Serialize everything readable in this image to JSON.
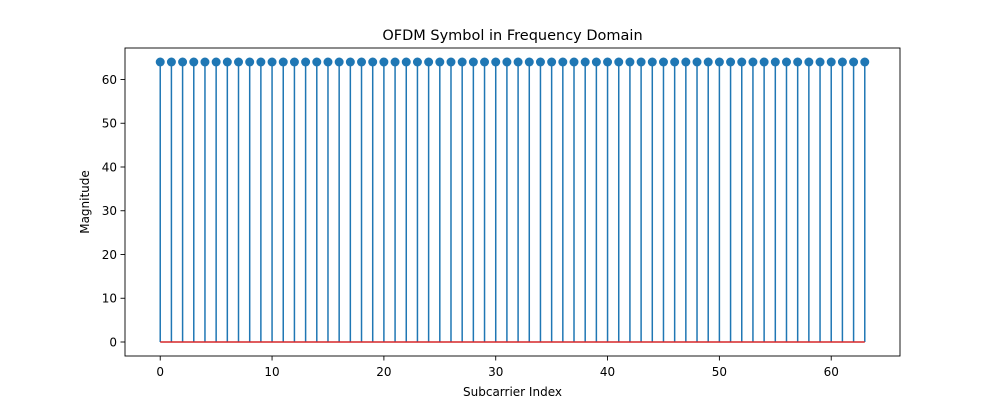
{
  "chart_data": {
    "type": "stem",
    "title": "OFDM Symbol in Frequency Domain",
    "xlabel": "Subcarrier Index",
    "ylabel": "Magnitude",
    "x": [
      0,
      1,
      2,
      3,
      4,
      5,
      6,
      7,
      8,
      9,
      10,
      11,
      12,
      13,
      14,
      15,
      16,
      17,
      18,
      19,
      20,
      21,
      22,
      23,
      24,
      25,
      26,
      27,
      28,
      29,
      30,
      31,
      32,
      33,
      34,
      35,
      36,
      37,
      38,
      39,
      40,
      41,
      42,
      43,
      44,
      45,
      46,
      47,
      48,
      49,
      50,
      51,
      52,
      53,
      54,
      55,
      56,
      57,
      58,
      59,
      60,
      61,
      62,
      63
    ],
    "values": [
      64,
      64,
      64,
      64,
      64,
      64,
      64,
      64,
      64,
      64,
      64,
      64,
      64,
      64,
      64,
      64,
      64,
      64,
      64,
      64,
      64,
      64,
      64,
      64,
      64,
      64,
      64,
      64,
      64,
      64,
      64,
      64,
      64,
      64,
      64,
      64,
      64,
      64,
      64,
      64,
      64,
      64,
      64,
      64,
      64,
      64,
      64,
      64,
      64,
      64,
      64,
      64,
      64,
      64,
      64,
      64,
      64,
      64,
      64,
      64,
      64,
      64,
      64,
      64
    ],
    "xlim": [
      -3.15,
      66.15
    ],
    "ylim": [
      -3.2,
      67.2
    ],
    "xticks": [
      0,
      10,
      20,
      30,
      40,
      50,
      60
    ],
    "yticks": [
      0,
      10,
      20,
      30,
      40,
      50,
      60
    ],
    "baseline": 0,
    "grid": false,
    "colors": {
      "stem": "#1f77b4",
      "marker": "#1f77b4",
      "baseline": "#d62728"
    }
  }
}
